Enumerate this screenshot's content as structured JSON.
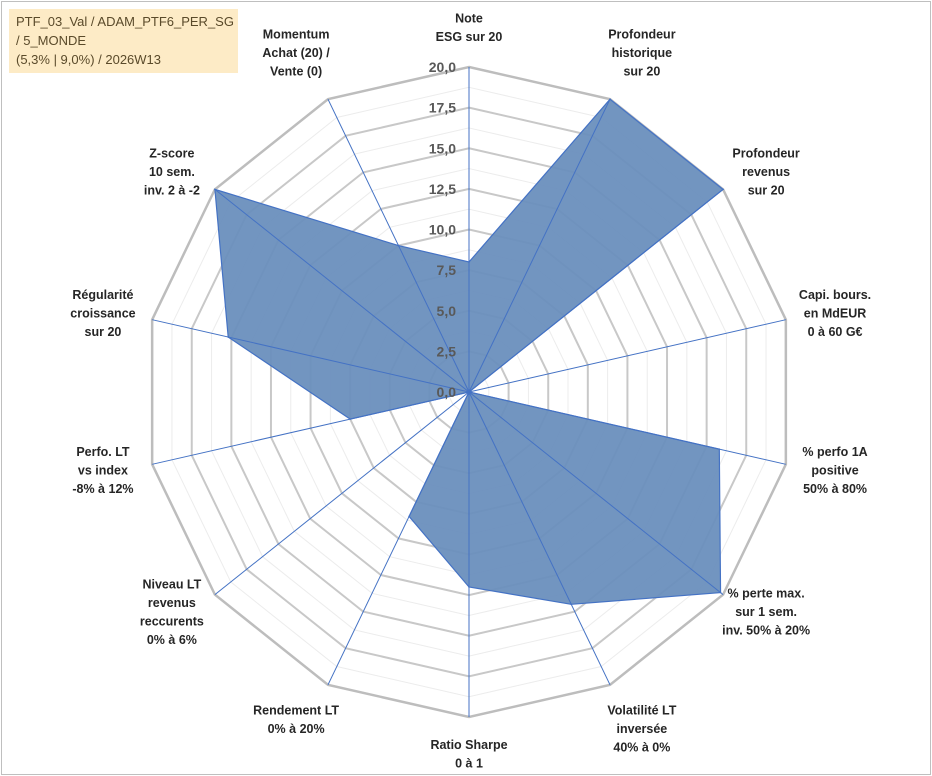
{
  "title_lines": [
    "PTF_03_Val / ADAM_PTF6_PER_SG",
    " / 5_MONDE",
    "(5,3% | 9,0%) / 2026W13"
  ],
  "chart_data": {
    "type": "radar",
    "rmin": 0,
    "rmax": 20,
    "tick_step": 2.5,
    "tick_labels": [
      "0,0",
      "2,5",
      "5,0",
      "7,5",
      "10,0",
      "12,5",
      "15,0",
      "17,5",
      "20,0"
    ],
    "grid": true,
    "legend": "none",
    "colors": {
      "fill": "#6a8fbd",
      "stroke": "#4472c4",
      "grid": "#c8c8c8",
      "spoke": "#4472c4"
    },
    "axes": [
      [
        "Note",
        "ESG sur 20"
      ],
      [
        "Profondeur",
        "historique",
        "sur 20"
      ],
      [
        "Profondeur",
        "revenus",
        "sur 20"
      ],
      [
        "Capi. bours.",
        "en MdEUR",
        "0 à 60 G€"
      ],
      [
        "% perfo 1A",
        "positive",
        "50% à 80%"
      ],
      [
        "% perte max.",
        "sur 1 sem.",
        "inv. 50% à 20%"
      ],
      [
        "Volatilité LT",
        "inversée",
        "40% à 0%"
      ],
      [
        "Ratio Sharpe",
        "0 à 1"
      ],
      [
        "Rendement LT",
        "0% à 20%"
      ],
      [
        "Niveau LT",
        "revenus",
        "reccurents",
        "0% à 6%"
      ],
      [
        "Perfo. LT",
        "vs index",
        "-8% à 12%"
      ],
      [
        "Régularité",
        "croissance",
        "sur 20"
      ],
      [
        "Z-score",
        "10 sem.",
        "inv. 2 à -2"
      ],
      [
        "Momentum",
        "Achat (20) /",
        "Vente (0)"
      ]
    ],
    "series": [
      {
        "values": [
          8.0,
          20.0,
          20.0,
          0.0,
          15.8,
          19.8,
          14.5,
          12.0,
          8.5,
          0.0,
          7.5,
          15.2,
          20.0,
          10.0
        ]
      }
    ]
  }
}
